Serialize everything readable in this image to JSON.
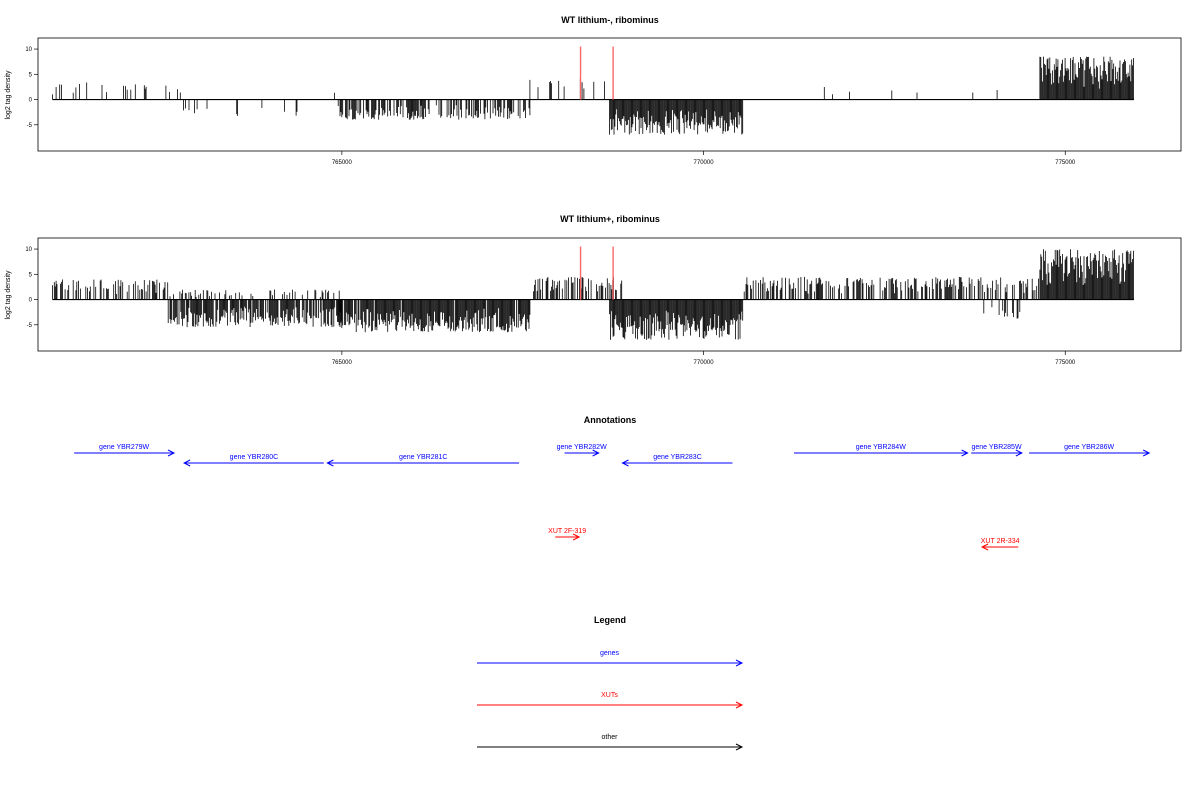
{
  "colors": {
    "gene": "#0000ff",
    "xut": "#ff0000",
    "other": "#000000",
    "marker": "#ff6666",
    "bar": "#000000"
  },
  "chart_data": [
    {
      "type": "bar",
      "title": "WT lithium-, ribominus",
      "ylabel": "log2 tag density",
      "xlim": [
        760800,
        776600
      ],
      "ylim": [
        -9,
        11
      ],
      "yticks": [
        -5,
        0,
        5,
        10
      ],
      "xticks": [
        765000,
        770000,
        775000
      ],
      "marker_x": [
        768300,
        768750
      ],
      "marker_ymax": 10.5,
      "segments": [
        {
          "start": 761000,
          "end": 762800,
          "sign": 1,
          "amp": 3.5,
          "density": 0.18
        },
        {
          "start": 762800,
          "end": 764400,
          "sign": -1,
          "amp": 3.5,
          "density": 0.1
        },
        {
          "start": 764400,
          "end": 764900,
          "sign": 1,
          "amp": 1.8,
          "density": 0.04
        },
        {
          "start": 764950,
          "end": 767600,
          "sign": -1,
          "amp": 4.0,
          "density": 0.6
        },
        {
          "start": 767600,
          "end": 768800,
          "sign": 1,
          "amp": 4.5,
          "density": 0.15
        },
        {
          "start": 768700,
          "end": 770550,
          "sign": -1,
          "amp": 7.0,
          "density": 1.0
        },
        {
          "start": 770550,
          "end": 774100,
          "sign": 1,
          "amp": 2.6,
          "density": 0.03
        },
        {
          "start": 774650,
          "end": 775950,
          "sign": 1,
          "amp": 8.5,
          "density": 1.0
        }
      ]
    },
    {
      "type": "bar",
      "title": "WT lithium+, ribominus",
      "ylabel": "log2 tag density",
      "xlim": [
        760800,
        776600
      ],
      "ylim": [
        -9,
        11
      ],
      "yticks": [
        -5,
        0,
        5,
        10
      ],
      "xticks": [
        765000,
        770000,
        775000
      ],
      "marker_x": [
        768300,
        768750
      ],
      "marker_ymax": 10.5,
      "segments": [
        {
          "start": 761000,
          "end": 762600,
          "sign": 1,
          "amp": 4.0,
          "density": 0.45
        },
        {
          "start": 762600,
          "end": 765000,
          "sign": -1,
          "amp": 5.5,
          "density": 0.8
        },
        {
          "start": 762600,
          "end": 765000,
          "sign": 1,
          "amp": 2.0,
          "density": 0.25
        },
        {
          "start": 764950,
          "end": 767600,
          "sign": -1,
          "amp": 6.5,
          "density": 0.95
        },
        {
          "start": 767600,
          "end": 768900,
          "sign": 1,
          "amp": 4.5,
          "density": 0.55
        },
        {
          "start": 768700,
          "end": 770550,
          "sign": -1,
          "amp": 8.0,
          "density": 1.0
        },
        {
          "start": 770550,
          "end": 774650,
          "sign": 1,
          "amp": 4.5,
          "density": 0.55
        },
        {
          "start": 773800,
          "end": 774400,
          "sign": -1,
          "amp": 4.0,
          "density": 0.3
        },
        {
          "start": 774650,
          "end": 775950,
          "sign": 1,
          "amp": 10.0,
          "density": 1.0
        }
      ]
    }
  ],
  "annotations": {
    "title": "Annotations",
    "items": [
      {
        "label": "gene YBR279W",
        "kind": "gene",
        "start": 761300,
        "end": 762680,
        "dir": 1,
        "row": 0
      },
      {
        "label": "gene YBR280C",
        "kind": "gene",
        "start": 762820,
        "end": 764750,
        "dir": -1,
        "row": 1
      },
      {
        "label": "gene YBR281C",
        "kind": "gene",
        "start": 764800,
        "end": 767450,
        "dir": -1,
        "row": 1
      },
      {
        "label": "gene YBR282W",
        "kind": "gene",
        "start": 768080,
        "end": 768550,
        "dir": 1,
        "row": 0
      },
      {
        "label": "gene YBR283C",
        "kind": "gene",
        "start": 768880,
        "end": 770400,
        "dir": -1,
        "row": 1
      },
      {
        "label": "gene YBR284W",
        "kind": "gene",
        "start": 771250,
        "end": 773650,
        "dir": 1,
        "row": 0
      },
      {
        "label": "gene YBR285W",
        "kind": "gene",
        "start": 773700,
        "end": 774400,
        "dir": 1,
        "row": 0
      },
      {
        "label": "gene YBR286W",
        "kind": "gene",
        "start": 774500,
        "end": 776160,
        "dir": 1,
        "row": 0
      },
      {
        "label": "XUT 2F-319",
        "kind": "xut",
        "start": 767950,
        "end": 768280,
        "dir": 1,
        "row": 2
      },
      {
        "label": "XUT 2R-334",
        "kind": "xut",
        "start": 773850,
        "end": 774350,
        "dir": -1,
        "row": 3
      }
    ]
  },
  "legend": {
    "title": "Legend",
    "items": [
      {
        "label": "genes",
        "kind": "gene"
      },
      {
        "label": "XUTs",
        "kind": "xut"
      },
      {
        "label": "other",
        "kind": "other"
      }
    ]
  }
}
